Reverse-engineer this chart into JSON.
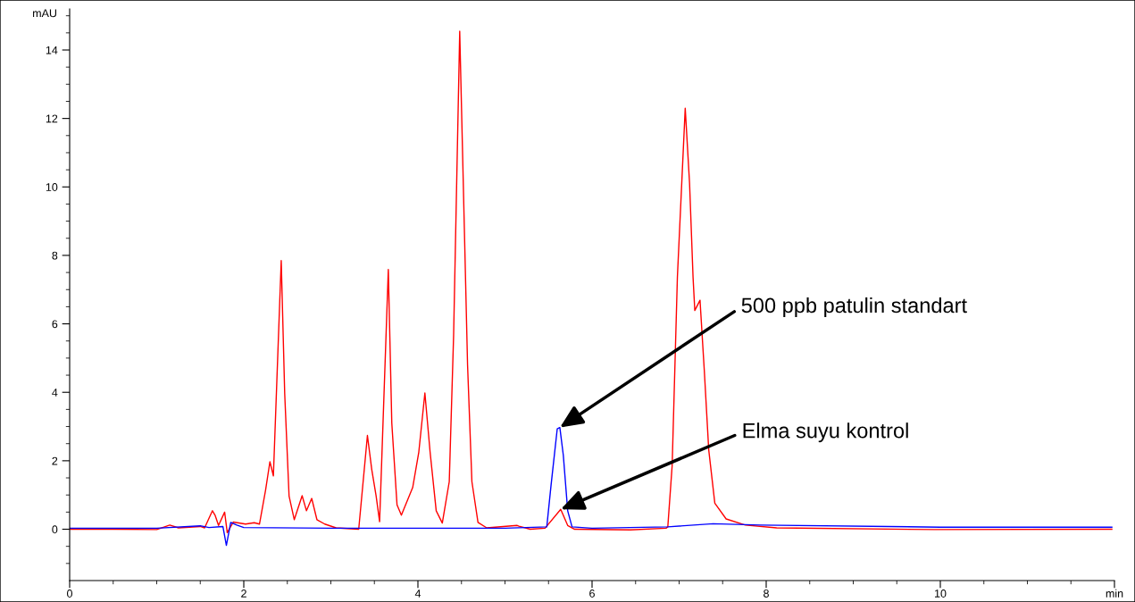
{
  "chart_data": {
    "type": "line",
    "xlim": [
      0,
      12
    ],
    "ylim": [
      -1.5,
      15.2
    ],
    "ylabel": "mAU",
    "xticks": [
      0,
      {
        "value": 0.5,
        "label": null
      },
      {
        "value": 1,
        "label": null
      },
      {
        "value": 1.5,
        "label": null
      },
      2,
      {
        "value": 2.5,
        "label": null
      },
      {
        "value": 3,
        "label": null
      },
      {
        "value": 3.5,
        "label": null
      },
      4,
      {
        "value": 4.5,
        "label": null
      },
      {
        "value": 5,
        "label": null
      },
      {
        "value": 5.5,
        "label": null
      },
      6,
      {
        "value": 6.5,
        "label": null
      },
      {
        "value": 7,
        "label": null
      },
      {
        "value": 7.5,
        "label": null
      },
      8,
      {
        "value": 8.5,
        "label": null
      },
      {
        "value": 9,
        "label": null
      },
      {
        "value": 9.5,
        "label": null
      },
      10,
      {
        "value": 10.5,
        "label": null
      },
      {
        "value": 11,
        "label": null
      },
      {
        "value": 11.5,
        "label": null
      },
      {
        "value": 12,
        "label": "min"
      }
    ],
    "yticks": [
      {
        "value": -1,
        "label": null
      },
      {
        "value": -0.5,
        "label": null
      },
      0,
      {
        "value": 0.5,
        "label": null
      },
      {
        "value": 1,
        "label": null
      },
      {
        "value": 1.5,
        "label": null
      },
      2,
      {
        "value": 2.5,
        "label": null
      },
      {
        "value": 3,
        "label": null
      },
      {
        "value": 3.5,
        "label": null
      },
      4,
      {
        "value": 4.5,
        "label": null
      },
      {
        "value": 5,
        "label": null
      },
      {
        "value": 5.5,
        "label": null
      },
      6,
      {
        "value": 6.5,
        "label": null
      },
      {
        "value": 7,
        "label": null
      },
      {
        "value": 7.5,
        "label": null
      },
      8,
      {
        "value": 8.5,
        "label": null
      },
      {
        "value": 9,
        "label": null
      },
      {
        "value": 9.5,
        "label": null
      },
      10,
      {
        "value": 10.5,
        "label": null
      },
      {
        "value": 11,
        "label": null
      },
      {
        "value": 11.5,
        "label": null
      },
      12,
      {
        "value": 12.5,
        "label": null
      },
      {
        "value": 13,
        "label": null
      },
      {
        "value": 13.5,
        "label": null
      },
      14,
      {
        "value": 14.5,
        "label": null
      },
      {
        "value": 15,
        "label": null
      }
    ],
    "grid": false,
    "legend": false,
    "marker": "none",
    "line_style": "solid",
    "series": [
      {
        "color": "#ff0000",
        "x": [
          0,
          0.5,
          1.0,
          1.15,
          1.25,
          1.5,
          1.55,
          1.64,
          1.67,
          1.71,
          1.78,
          1.81,
          1.88,
          2.02,
          2.12,
          2.18,
          2.25,
          2.3,
          2.34,
          2.43,
          2.47,
          2.52,
          2.58,
          2.67,
          2.72,
          2.78,
          2.84,
          2.93,
          3.06,
          3.32,
          3.42,
          3.47,
          3.52,
          3.56,
          3.66,
          3.7,
          3.76,
          3.81,
          3.94,
          4.01,
          4.08,
          4.14,
          4.21,
          4.28,
          4.36,
          4.41,
          4.48,
          4.57,
          4.62,
          4.69,
          4.79,
          5.14,
          5.16,
          5.29,
          5.46,
          5.64,
          5.72,
          5.8,
          6.44,
          6.85,
          6.87,
          6.92,
          6.98,
          7.07,
          7.12,
          7.16,
          7.18,
          7.24,
          7.29,
          7.34,
          7.41,
          7.54,
          7.76,
          8.12,
          9.93,
          11.97
        ],
        "values": [
          0.0,
          0.0,
          -0.01,
          0.12,
          0.04,
          0.08,
          0.04,
          0.54,
          0.41,
          0.11,
          0.5,
          -0.1,
          0.21,
          0.15,
          0.19,
          0.15,
          1.14,
          1.97,
          1.56,
          7.85,
          3.96,
          0.97,
          0.28,
          0.98,
          0.54,
          0.9,
          0.28,
          0.15,
          0.04,
          0.0,
          2.74,
          1.74,
          0.97,
          0.22,
          7.59,
          3.1,
          0.71,
          0.41,
          1.22,
          2.25,
          3.98,
          2.25,
          0.54,
          0.18,
          1.39,
          5.67,
          14.55,
          4.81,
          1.39,
          0.2,
          0.04,
          0.11,
          0.09,
          0.0,
          0.03,
          0.58,
          0.11,
          0.0,
          -0.02,
          0.03,
          0.07,
          1.86,
          7.36,
          12.3,
          10.1,
          7.36,
          6.39,
          6.69,
          4.6,
          2.32,
          0.76,
          0.3,
          0.12,
          0.04,
          -0.01,
          0.0
        ]
      },
      {
        "color": "#0000ff",
        "x": [
          0,
          1.0,
          1.5,
          1.6,
          1.76,
          1.8,
          1.85,
          1.92,
          2.0,
          3.0,
          4.0,
          5.0,
          5.48,
          5.53,
          5.6,
          5.63,
          5.67,
          5.72,
          5.77,
          6.0,
          6.87,
          7.39,
          7.94,
          10.0,
          11.97
        ],
        "values": [
          0.03,
          0.03,
          0.1,
          0.05,
          0.08,
          -0.47,
          0.2,
          0.12,
          0.05,
          0.03,
          0.03,
          0.03,
          0.07,
          1.31,
          2.93,
          2.97,
          2.16,
          0.54,
          0.07,
          0.03,
          0.07,
          0.16,
          0.12,
          0.06,
          0.06
        ]
      }
    ],
    "annotations": [
      {
        "text": "500 ppb patulin standart",
        "x": 5.63,
        "y": 2.97
      },
      {
        "text": "Elma suyu kontrol",
        "x": 5.64,
        "y": 0.58
      }
    ]
  }
}
